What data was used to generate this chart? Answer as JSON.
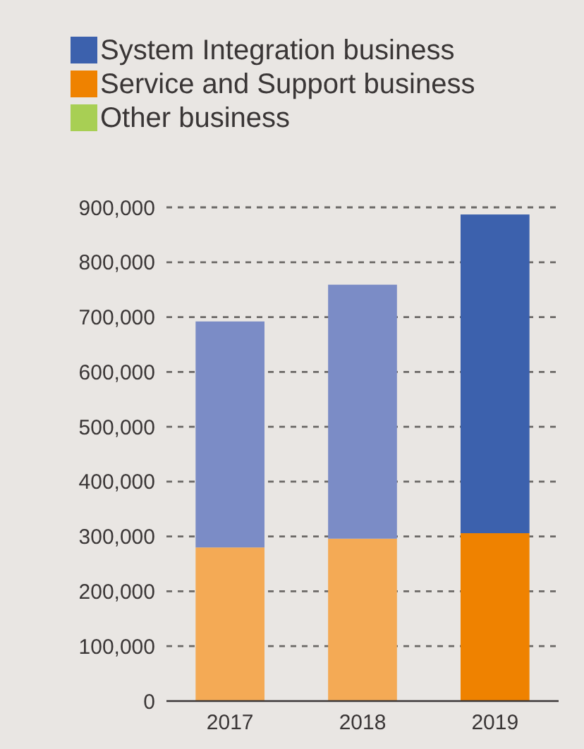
{
  "chart_data": {
    "type": "bar",
    "stacked": true,
    "categories": [
      "2017",
      "2018",
      "2019"
    ],
    "series": [
      {
        "name": "Other business",
        "color": "#a8cf54",
        "values": [
          null,
          null,
          null
        ]
      },
      {
        "name": "Service and Support business",
        "color": "#ef8200",
        "colors": [
          "#f4aa55",
          "#f4aa55",
          "#ef8200"
        ],
        "values": [
          280000,
          296000,
          306000
        ]
      },
      {
        "name": "System Integration business",
        "color": "#3c61ad",
        "colors": [
          "#7b8cc6",
          "#7b8cc6",
          "#3c61ad"
        ],
        "values": [
          412000,
          463000,
          581000
        ]
      }
    ],
    "ylim": [
      0,
      900000
    ],
    "yticks": [
      {
        "value": 0,
        "label": "0"
      },
      {
        "value": 100000,
        "label": "100,000"
      },
      {
        "value": 200000,
        "label": "200,000"
      },
      {
        "value": 300000,
        "label": "300,000"
      },
      {
        "value": 400000,
        "label": "400,000"
      },
      {
        "value": 500000,
        "label": "500,000"
      },
      {
        "value": 600000,
        "label": "600,000"
      },
      {
        "value": 700000,
        "label": "700,000"
      },
      {
        "value": 800000,
        "label": "800,000"
      },
      {
        "value": 900000,
        "label": "900,000"
      }
    ],
    "grid": "y",
    "legend": "top left"
  }
}
